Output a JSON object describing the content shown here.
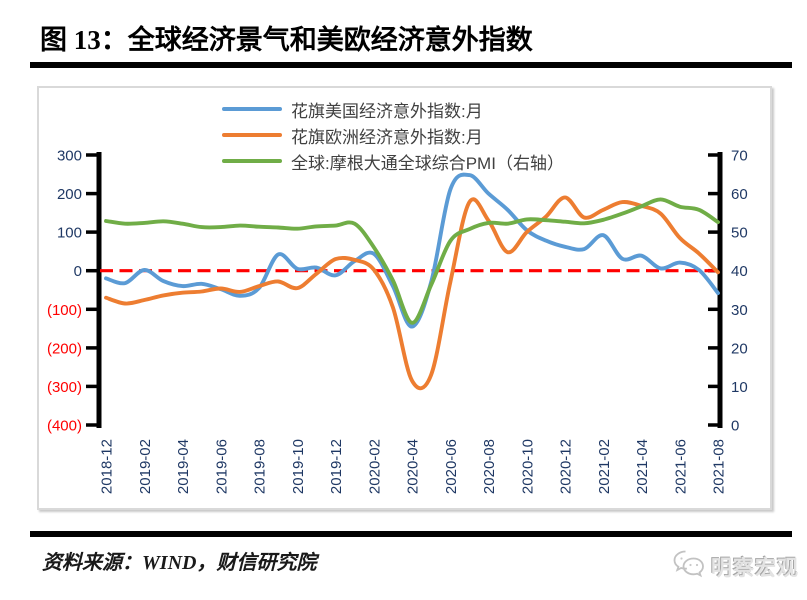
{
  "header": {
    "title": "图 13：全球经济景气和美欧经济意外指数"
  },
  "footer": {
    "source": "资料来源：WIND，财信研究院",
    "logo_text": "明察宏观",
    "logo_icon": "wechat-icon"
  },
  "chart_data": {
    "type": "line",
    "smooth": true,
    "grid": false,
    "legend_position": "top-center",
    "months": [
      "2018-12",
      "2019-01",
      "2019-02",
      "2019-03",
      "2019-04",
      "2019-05",
      "2019-06",
      "2019-07",
      "2019-08",
      "2019-09",
      "2019-10",
      "2019-11",
      "2019-12",
      "2020-01",
      "2020-02",
      "2020-03",
      "2020-04",
      "2020-05",
      "2020-06",
      "2020-07",
      "2020-08",
      "2020-09",
      "2020-10",
      "2020-11",
      "2020-12",
      "2021-01",
      "2021-02",
      "2021-03",
      "2021-04",
      "2021-05",
      "2021-06",
      "2021-07",
      "2021-08"
    ],
    "x_labels": [
      "2018-12",
      "2019-02",
      "2019-04",
      "2019-06",
      "2019-08",
      "2019-10",
      "2019-12",
      "2020-02",
      "2020-04",
      "2020-06",
      "2020-08",
      "2020-10",
      "2020-12",
      "2021-02",
      "2021-04",
      "2021-06",
      "2021-08"
    ],
    "series": [
      {
        "name": "花旗美国经济意外指数:月",
        "color": "#5B9BD5",
        "axis": "left",
        "values": [
          -20,
          -32,
          2,
          -27,
          -40,
          -34,
          -48,
          -65,
          -45,
          42,
          5,
          8,
          -12,
          25,
          44,
          -40,
          -145,
          -30,
          210,
          248,
          200,
          158,
          105,
          78,
          62,
          56,
          92,
          31,
          39,
          6,
          21,
          2,
          -58
        ]
      },
      {
        "name": "花旗欧洲经济意外指数:月",
        "color": "#ED7D31",
        "axis": "left",
        "values": [
          -70,
          -85,
          -76,
          -64,
          -57,
          -54,
          -46,
          -55,
          -40,
          -28,
          -45,
          -8,
          30,
          28,
          3,
          -95,
          -285,
          -270,
          -30,
          178,
          130,
          48,
          100,
          140,
          190,
          138,
          158,
          178,
          168,
          148,
          85,
          45,
          -4
        ]
      },
      {
        "name": "全球:摩根大通全球综合PMI（右轴）",
        "color": "#70AD47",
        "axis": "right",
        "values": [
          52.9,
          52.2,
          52.4,
          52.8,
          52.2,
          51.3,
          51.3,
          51.7,
          51.4,
          51.2,
          50.9,
          51.5,
          51.7,
          52.2,
          46.1,
          37.5,
          26.5,
          36.3,
          47.7,
          50.8,
          52.4,
          52.2,
          53.3,
          53.1,
          52.7,
          52.3,
          53.2,
          54.8,
          56.7,
          58.5,
          56.6,
          55.8,
          52.6
        ]
      }
    ],
    "left_axis": {
      "labels": [
        "300",
        "200",
        "100",
        "0",
        "(100)",
        "(200)",
        "(300)",
        "(400)"
      ],
      "min": -400,
      "max": 300,
      "label_color": "#1F3864",
      "negative_color": "#FF0000"
    },
    "right_axis": {
      "labels": [
        "70",
        "60",
        "50",
        "40",
        "30",
        "20",
        "10",
        "0"
      ],
      "min": 0,
      "max": 70,
      "label_color": "#1F3864"
    },
    "zero_line": {
      "left_value": 0,
      "color": "#FF0000",
      "style": "dashed"
    },
    "x_label_color": "#1F3864",
    "axis_color": "#000000"
  }
}
